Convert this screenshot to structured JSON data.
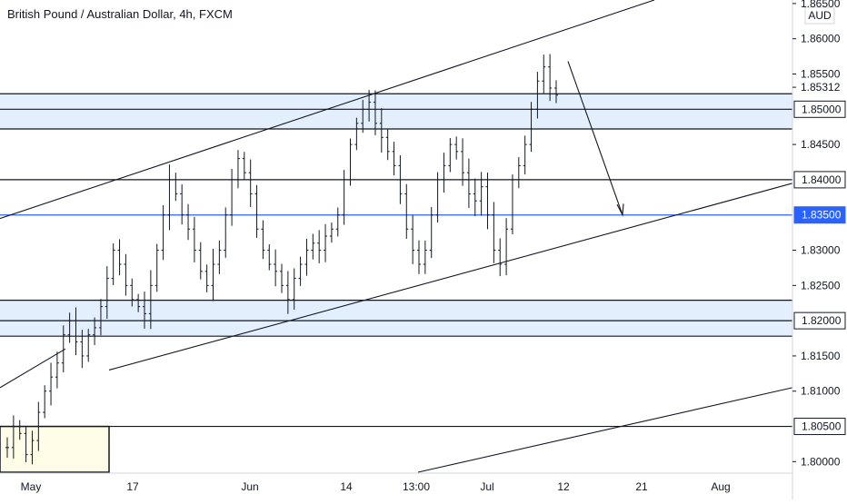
{
  "chart_data": {
    "type": "ohlc",
    "title": "British Pound / Australian Dollar, 4h, FXCM",
    "currency": "AUD",
    "y_ticks": [
      "1.86500",
      "1.86000",
      "1.85500",
      "1.85312",
      "1.85000",
      "1.84500",
      "1.84000",
      "1.83500",
      "1.83000",
      "1.82500",
      "1.82000",
      "1.81500",
      "1.81000",
      "1.80500",
      "1.80000"
    ],
    "y_tick_values": [
      1.865,
      1.86,
      1.855,
      1.85312,
      1.85,
      1.845,
      1.84,
      1.835,
      1.83,
      1.825,
      1.82,
      1.815,
      1.81,
      1.805,
      1.8
    ],
    "ylim": [
      1.7985,
      1.8655
    ],
    "x_ticks": [
      "May",
      "17",
      "Jun",
      "14",
      "13:00",
      "Jul",
      "12",
      "21",
      "Aug"
    ],
    "highlighted_levels": [
      {
        "label": "1.85000",
        "value": 1.85,
        "style": "black"
      },
      {
        "label": "1.84000",
        "value": 1.84,
        "style": "black"
      },
      {
        "label": "1.83500",
        "value": 1.835,
        "style": "blue"
      },
      {
        "label": "1.82000",
        "value": 1.82,
        "style": "black"
      },
      {
        "label": "1.80500",
        "value": 1.805,
        "style": "black"
      }
    ],
    "zones": [
      {
        "from": 1.8472,
        "to": 1.8522
      },
      {
        "from": 1.8178,
        "to": 1.8229
      }
    ],
    "price_line": 1.835,
    "extra_lines": [
      1.8522,
      1.8472,
      1.8229,
      1.8178
    ],
    "demand_box": {
      "from": 1.7985,
      "to": 1.805
    },
    "series": [
      {
        "values": [
          1.802,
          1.805,
          1.804,
          1.801,
          1.803,
          1.807,
          1.81,
          1.812,
          1.814,
          1.818,
          1.82,
          1.817,
          1.815,
          1.818,
          1.819,
          1.822,
          1.826,
          1.83,
          1.828,
          1.825,
          1.823,
          1.822,
          1.821,
          1.825,
          1.83,
          1.835,
          1.84,
          1.838,
          1.835,
          1.833,
          1.83,
          1.827,
          1.825,
          1.828,
          1.83,
          1.835,
          1.84,
          1.843,
          1.841,
          1.838,
          1.833,
          1.83,
          1.828,
          1.827,
          1.825,
          1.823,
          1.826,
          1.828,
          1.83,
          1.831,
          1.83,
          1.832,
          1.833,
          1.835,
          1.84,
          1.845,
          1.848,
          1.85,
          1.851,
          1.848,
          1.846,
          1.844,
          1.842,
          1.838,
          1.833,
          1.83,
          1.828,
          1.83,
          1.835,
          1.84,
          1.842,
          1.845,
          1.844,
          1.841,
          1.838,
          1.837,
          1.839,
          1.835,
          1.83,
          1.828,
          1.833,
          1.84,
          1.842,
          1.845,
          1.85,
          1.854,
          1.856,
          1.853,
          1.852
        ]
      }
    ]
  }
}
